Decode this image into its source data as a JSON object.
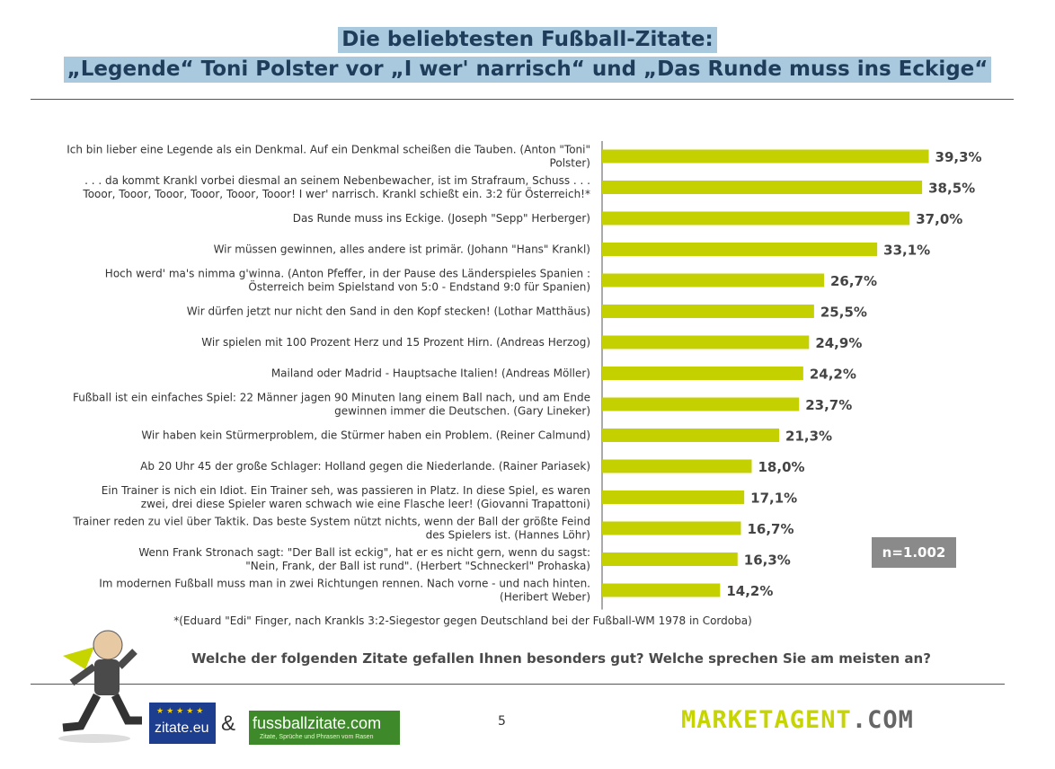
{
  "title": {
    "line1": "Die beliebtesten Fußball-Zitate:",
    "line2": "„Legende“ Toni Polster vor „I wer' narrisch“ und „Das Runde muss ins Eckige“"
  },
  "chart_data": {
    "type": "bar",
    "orientation": "horizontal",
    "categories": [
      [
        "Ich bin lieber eine Legende als ein Denkmal. Auf ein Denkmal scheißen die Tauben. (Anton \"Toni\"",
        "Polster)"
      ],
      [
        ". . . da kommt Krankl vorbei diesmal an seinem Nebenbewacher, ist im Strafraum, Schuss . . .",
        "Tooor, Tooor, Tooor, Tooor, Tooor, Tooor! I wer' narrisch. Krankl schießt ein. 3:2 für Österreich!*"
      ],
      [
        "Das Runde muss ins Eckige. (Joseph \"Sepp\" Herberger)"
      ],
      [
        "Wir müssen gewinnen, alles andere ist primär. (Johann \"Hans\" Krankl)"
      ],
      [
        "Hoch werd' ma's nimma g'winna. (Anton Pfeffer, in der Pause des Länderspieles Spanien :",
        "Österreich beim Spielstand von 5:0 - Endstand 9:0 für Spanien)"
      ],
      [
        "Wir dürfen jetzt nur nicht den Sand in den Kopf stecken! (Lothar Matthäus)"
      ],
      [
        "Wir spielen mit 100 Prozent Herz und 15 Prozent Hirn. (Andreas Herzog)"
      ],
      [
        "Mailand oder Madrid - Hauptsache Italien! (Andreas Möller)"
      ],
      [
        "Fußball ist ein einfaches Spiel: 22 Männer jagen 90 Minuten lang einem Ball nach, und am Ende",
        "gewinnen immer die Deutschen. (Gary Lineker)"
      ],
      [
        "Wir haben kein Stürmerproblem, die Stürmer haben ein Problem. (Reiner Calmund)"
      ],
      [
        "Ab 20 Uhr 45 der große Schlager: Holland gegen die Niederlande. (Rainer Pariasek)"
      ],
      [
        "Ein Trainer is nich ein Idiot. Ein Trainer seh, was passieren in Platz. In diese Spiel, es waren",
        "zwei, drei diese Spieler waren schwach wie eine Flasche leer! (Giovanni Trapattoni)"
      ],
      [
        "Trainer reden zu viel über Taktik. Das beste System nützt nichts, wenn der Ball der größte Feind",
        "des Spielers ist. (Hannes Löhr)"
      ],
      [
        "Wenn Frank Stronach sagt: \"Der Ball ist eckig\", hat er es nicht gern, wenn du sagst:",
        "\"Nein, Frank, der Ball ist rund\". (Herbert \"Schneckerl\" Prohaska)"
      ],
      [
        "Im modernen Fußball muss man in zwei Richtungen rennen. Nach vorne - und nach hinten.",
        "(Heribert Weber)"
      ]
    ],
    "values": [
      39.3,
      38.5,
      37.0,
      33.1,
      26.7,
      25.5,
      24.9,
      24.2,
      23.7,
      21.3,
      18.0,
      17.1,
      16.7,
      16.3,
      14.2
    ],
    "value_labels": [
      "39,3%",
      "38,5%",
      "37,0%",
      "33,1%",
      "26,7%",
      "25,5%",
      "24,9%",
      "24,2%",
      "23,7%",
      "21,3%",
      "18,0%",
      "17,1%",
      "16,7%",
      "16,3%",
      "14,2%"
    ],
    "xlim": [
      0,
      100
    ],
    "bar_color": "#c4d000",
    "grid": false
  },
  "sample": "n=1.002",
  "footnote": "*(Eduard \"Edi\" Finger, nach Krankls 3:2-Siegestor gegen Deutschland bei der Fußball-WM 1978 in Cordoba)",
  "question": "Welche der folgenden Zitate gefallen Ihnen besonders gut? Welche sprechen Sie am meisten an?",
  "page_number": "5",
  "logos": {
    "zitate": "zitate.eu",
    "amp": "&",
    "fussball": "fussballzitate.com",
    "fussball_tagline": "Zitate, Sprüche und Phrasen vom Rasen",
    "marketagent_a": "MARKETAGENT",
    "marketagent_b": ".COM"
  }
}
